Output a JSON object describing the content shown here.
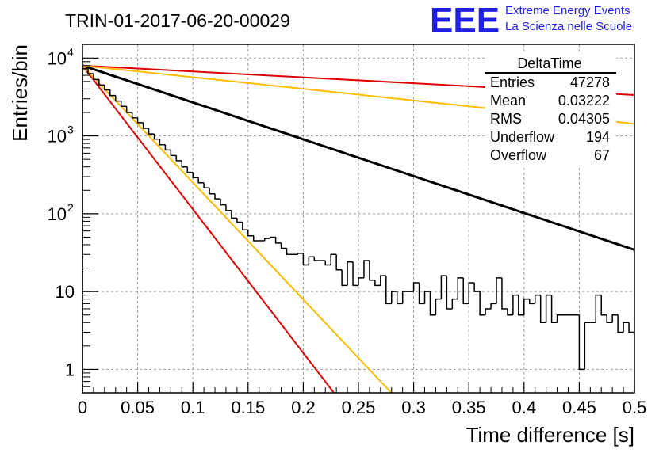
{
  "chart_data": {
    "type": "line",
    "title": "TRIN-01-2017-06-20-00029",
    "xlabel": "Time difference [s]",
    "ylabel": "Entries/bin",
    "xlim": [
      0,
      0.5
    ],
    "ylim": [
      0.5,
      15000
    ],
    "yscale": "log",
    "grid": true,
    "x_ticks": [
      "0",
      "0.05",
      "0.1",
      "0.15",
      "0.2",
      "0.25",
      "0.3",
      "0.35",
      "0.4",
      "0.45",
      "0.5"
    ],
    "y_ticks": [
      {
        "value": 1,
        "label": "1",
        "sup": ""
      },
      {
        "value": 10,
        "label": "10",
        "sup": ""
      },
      {
        "value": 100,
        "label": "10",
        "sup": "2"
      },
      {
        "value": 1000,
        "label": "10",
        "sup": "3"
      },
      {
        "value": 10000,
        "label": "10",
        "sup": "4"
      }
    ],
    "histogram": {
      "bin_width": 0.005,
      "color": "#000000",
      "values": [
        7300,
        6300,
        5300,
        4500,
        3900,
        3300,
        2800,
        2400,
        2000,
        1700,
        1480,
        1250,
        1060,
        910,
        770,
        660,
        560,
        480,
        400,
        340,
        290,
        250,
        215,
        180,
        155,
        130,
        110,
        88,
        78,
        62,
        52,
        45,
        45,
        48,
        50,
        42,
        36,
        30,
        30,
        31,
        22,
        28,
        25,
        25,
        22,
        30,
        19,
        12,
        24,
        12,
        15,
        25,
        14,
        12,
        16,
        7,
        10,
        7,
        10,
        10,
        13,
        7,
        10,
        5,
        8,
        16,
        6,
        8,
        15,
        7,
        13,
        10,
        5,
        6,
        7,
        15,
        6,
        5,
        9,
        5,
        8,
        7,
        9,
        4,
        9,
        4,
        5,
        5,
        5,
        5,
        1,
        4,
        4,
        9,
        5,
        4,
        5,
        3,
        4,
        3
      ]
    },
    "fits": [
      {
        "color": "#000000",
        "y0": 8000,
        "slope": -10.9,
        "width": 3
      },
      {
        "color": "#dd0000",
        "y0": 8000,
        "slope": -1.74,
        "width": 2
      },
      {
        "color": "#ffbb00",
        "y0": 8000,
        "slope": -3.44,
        "width": 2
      },
      {
        "color": "#dd0000",
        "y0": 8000,
        "slope": -42.5,
        "width": 2
      },
      {
        "color": "#ffbb00",
        "y0": 8000,
        "slope": -34.6,
        "width": 2
      }
    ],
    "stats": {
      "title": "DeltaTime",
      "rows": [
        {
          "label": "Entries",
          "value": "47278"
        },
        {
          "label": "Mean",
          "value": "0.03222"
        },
        {
          "label": "RMS",
          "value": "0.04305"
        },
        {
          "label": "Underflow",
          "value": "194"
        },
        {
          "label": "Overflow",
          "value": "67"
        }
      ]
    }
  },
  "logo": {
    "mark": "EEE",
    "line1": "Extreme Energy Events",
    "line2": "La Scienza nelle Scuole",
    "color": "#1f1fe6"
  }
}
